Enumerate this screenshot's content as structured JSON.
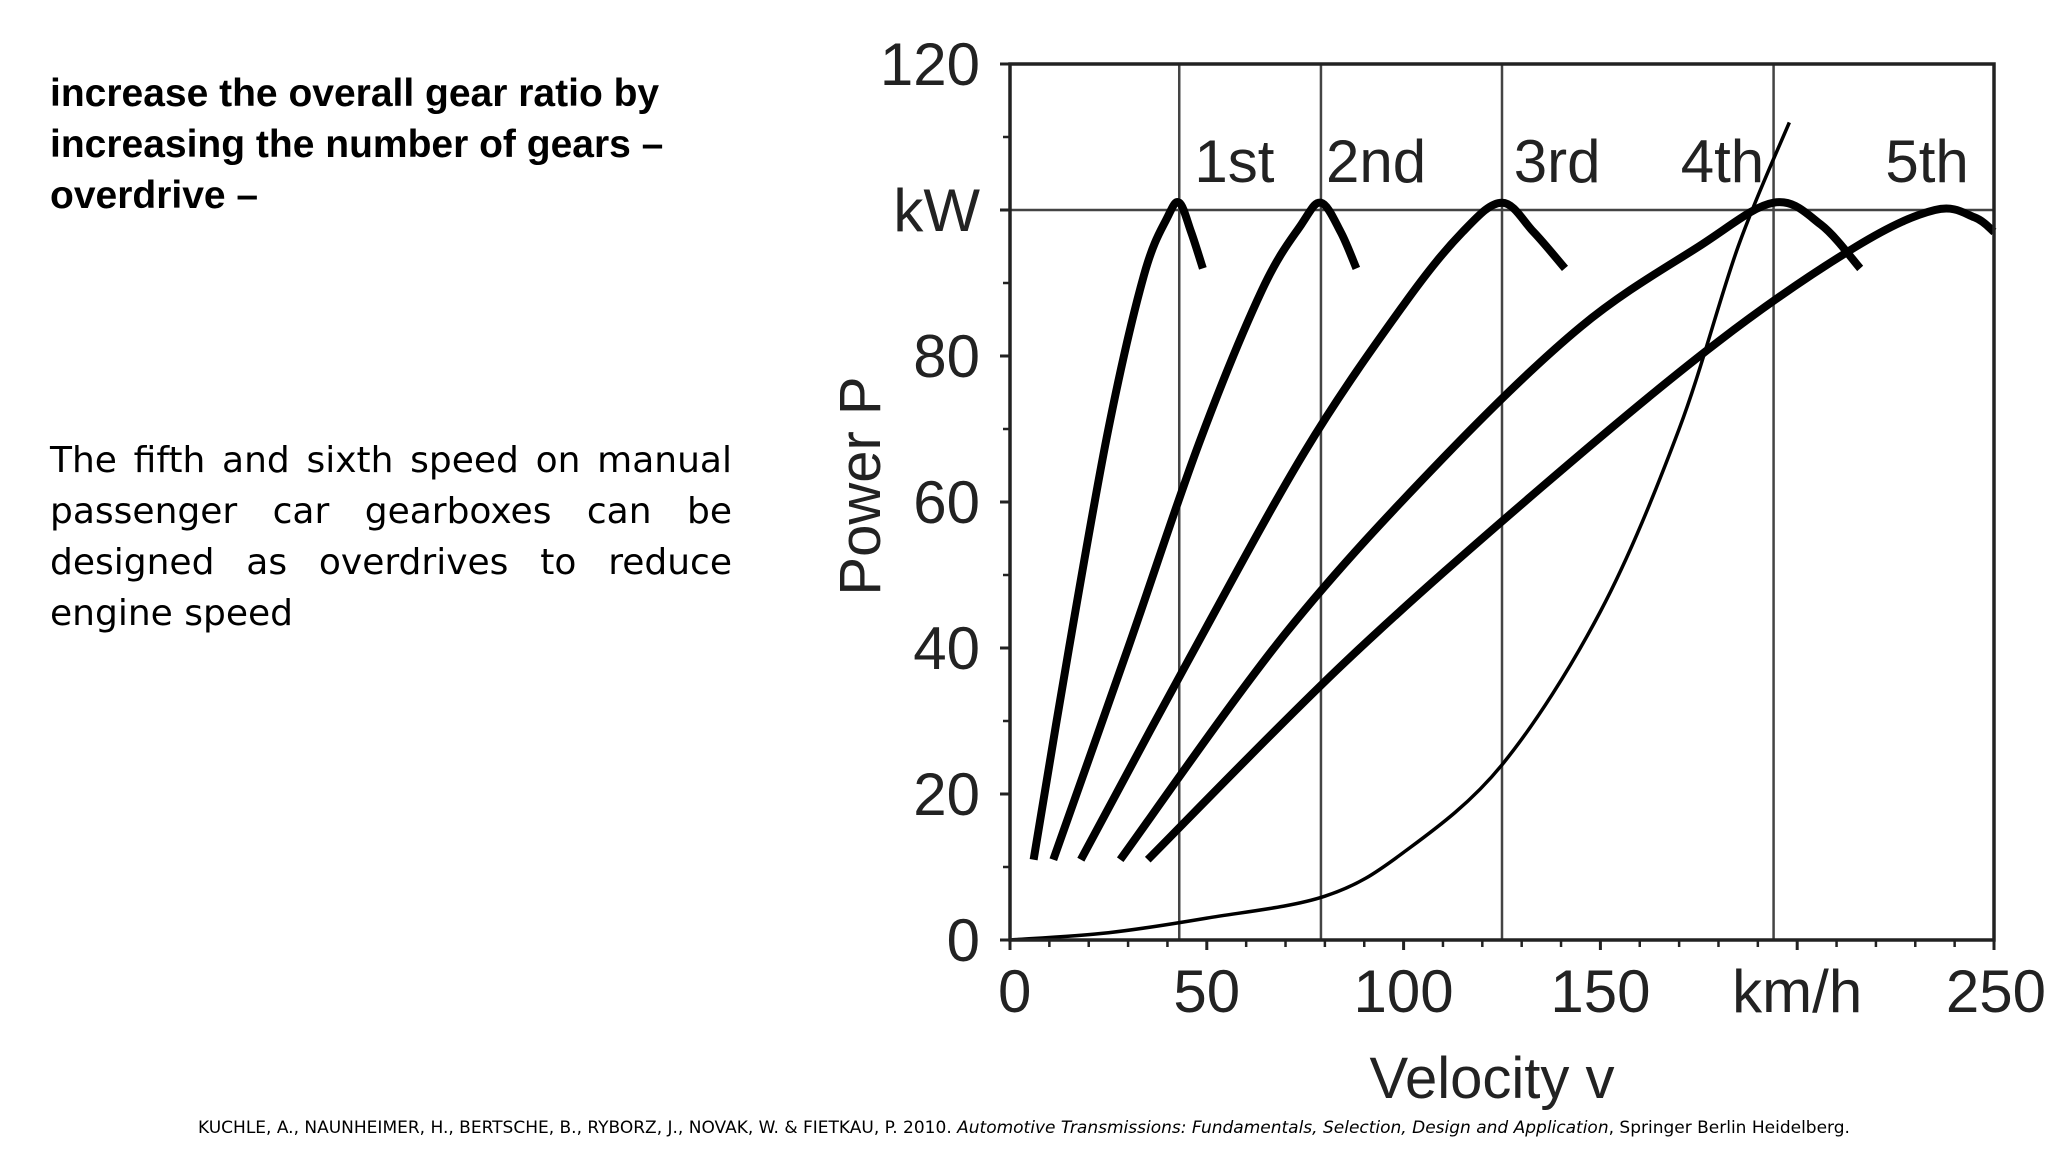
{
  "slide": {
    "heading": "increase the overall gear ratio by\nincreasing the number of gears –\noverdrive –",
    "body": "The fifth and sixth speed on manual passenger car gearboxes can be designed as overdrives to reduce engine speed",
    "citation": {
      "authors": "KUCHLE, A., NAUNHEIMER, H., BERTSCHE, B., RYBORZ, J., NOVAK, W. & FIETKAU, P. 2010. ",
      "title": "Automotive Transmissions: Fundamentals, Selection, Design and Application",
      "publisher": ", Springer Berlin Heidelberg."
    }
  },
  "chart_data": {
    "type": "line",
    "xlabel": "Velocity v",
    "ylabel": "Power P",
    "xlim": [
      0,
      250
    ],
    "ylim": [
      0,
      120
    ],
    "x_ticks": [
      "0",
      "50",
      "100",
      "150",
      "km/h",
      "250"
    ],
    "y_ticks": [
      "0",
      "20",
      "40",
      "60",
      "80",
      "kW",
      "120"
    ],
    "grid": "vertical lines at 1st, 2nd, 3rd and 4th gear max-power speeds; horizontal line at max power",
    "max_power": 100,
    "series": [
      {
        "name": "1st",
        "x": [
          6,
          15,
          25,
          34,
          40,
          43,
          46,
          49
        ],
        "y": [
          11,
          40,
          70,
          91,
          99,
          101,
          97,
          92
        ]
      },
      {
        "name": "2nd",
        "x": [
          11,
          30,
          48,
          64,
          74,
          79,
          84,
          88
        ],
        "y": [
          11,
          40,
          68,
          89,
          98,
          101,
          97,
          92
        ]
      },
      {
        "name": "3rd",
        "x": [
          18,
          45,
          75,
          100,
          115,
          125,
          133,
          141
        ],
        "y": [
          11,
          38,
          67,
          87,
          97,
          101,
          97,
          92
        ]
      },
      {
        "name": "4th",
        "x": [
          28,
          70,
          110,
          145,
          175,
          194,
          206,
          216
        ],
        "y": [
          11,
          42,
          66,
          84,
          95,
          101,
          98,
          92
        ]
      },
      {
        "name": "5th",
        "x": [
          35,
          85,
          135,
          180,
          215,
          235,
          245,
          250
        ],
        "y": [
          11,
          38,
          62,
          82,
          95,
          100,
          99,
          97
        ]
      },
      {
        "name": "",
        "x": [
          0,
          25,
          50,
          80,
          100,
          125,
          150,
          170,
          185,
          198
        ],
        "y": [
          0,
          1,
          3,
          6,
          12,
          24,
          45,
          70,
          95,
          112
        ]
      }
    ],
    "vertical_lines_x": [
      43,
      79,
      125,
      194
    ]
  }
}
